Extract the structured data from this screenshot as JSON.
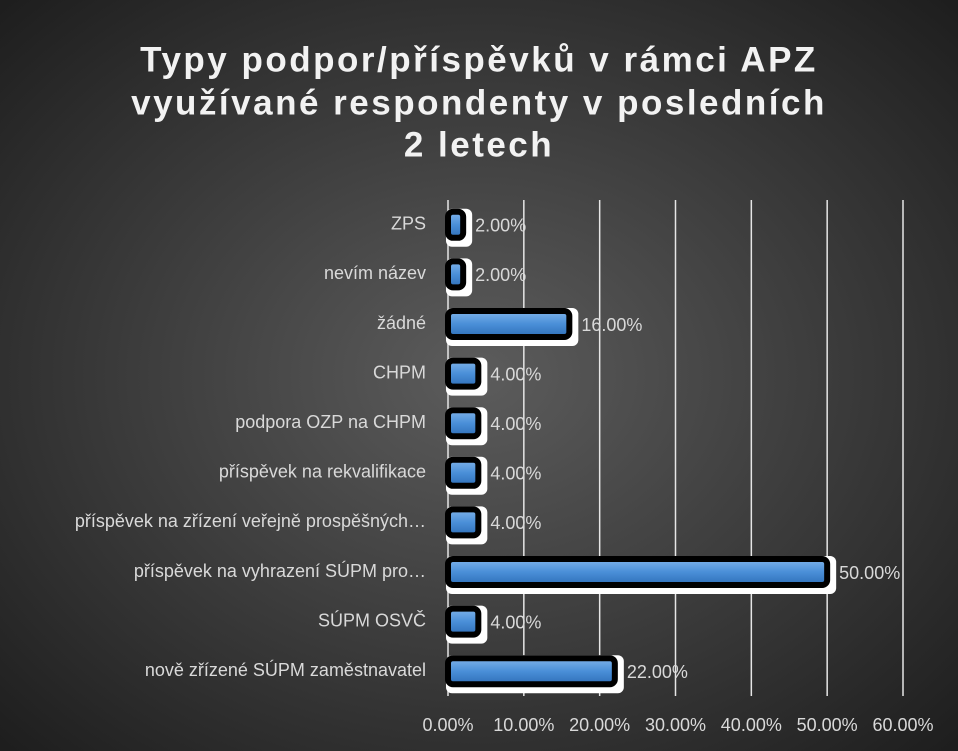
{
  "chart_data": {
    "type": "bar",
    "orientation": "horizontal",
    "title": [
      "Typy podpor/příspěvků v rámci APZ",
      "využívané respondenty v posledních",
      "2 letech"
    ],
    "categories": [
      "ZPS",
      "nevím název",
      "žádné",
      "CHPM",
      "podpora OZP na CHPM",
      "příspěvek na rekvalifikace",
      "příspěvek na zřízení veřejně prospěšných…",
      "příspěvek na vyhrazení SÚPM pro…",
      "SÚPM OSVČ",
      "nově zřízené SÚPM zaměstnavatel"
    ],
    "values": [
      2,
      2,
      16,
      4,
      4,
      4,
      4,
      50,
      4,
      22
    ],
    "value_labels": [
      "2.00%",
      "2.00%",
      "16.00%",
      "4.00%",
      "4.00%",
      "4.00%",
      "4.00%",
      "50.00%",
      "4.00%",
      "22.00%"
    ],
    "color": "#4a8fd8",
    "xlim": [
      0,
      60
    ],
    "xticks": [
      {
        "value": 0,
        "label": "0.00%"
      },
      {
        "value": 10,
        "label": "10.00%"
      },
      {
        "value": 20,
        "label": "20.00%"
      },
      {
        "value": 30,
        "label": "30.00%"
      },
      {
        "value": 40,
        "label": "40.00%"
      },
      {
        "value": 50,
        "label": "50.00%"
      },
      {
        "value": 60,
        "label": "60.00%"
      }
    ],
    "grid": true
  }
}
